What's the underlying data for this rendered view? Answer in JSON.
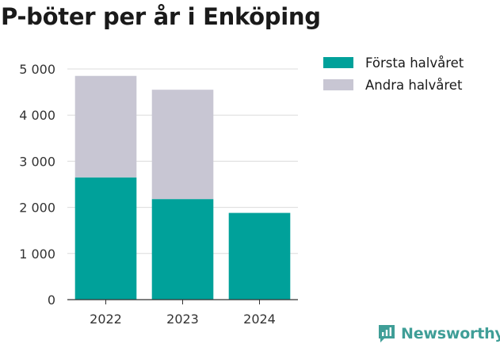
{
  "chart_data": {
    "type": "bar",
    "stacked": true,
    "title": "P-böter per år i Enköping",
    "xlabel": "",
    "ylabel": "",
    "categories": [
      "2022",
      "2023",
      "2024"
    ],
    "series": [
      {
        "name": "Första halvåret",
        "color": "#00a19a",
        "values": [
          2650,
          2180,
          1880
        ]
      },
      {
        "name": "Andra halvåret",
        "color": "#c8c6d3",
        "values": [
          2200,
          2370,
          0
        ]
      }
    ],
    "ylim": [
      0,
      5000
    ],
    "yticks": [
      0,
      1000,
      2000,
      3000,
      4000,
      5000
    ],
    "ytick_labels": [
      "0",
      "1 000",
      "2 000",
      "3 000",
      "4 000",
      "5 000"
    ],
    "grid": true,
    "legend_position": "right"
  },
  "brand": {
    "name": "Newsworthy",
    "icon": "newsworthy-logo-icon"
  }
}
